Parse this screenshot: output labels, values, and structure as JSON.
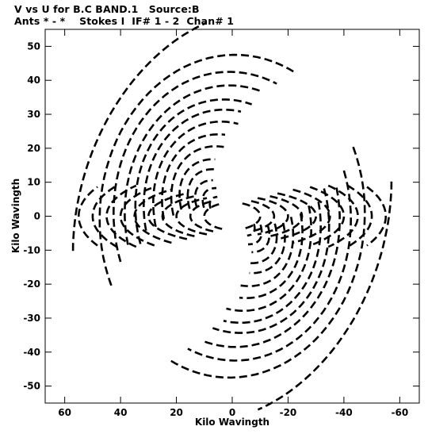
{
  "header": {
    "line1": "V vs U for B.C BAND.1   Source:B",
    "line2": "Ants * - *    Stokes I  IF# 1 - 2  Chan# 1"
  },
  "chart_data": {
    "type": "scatter",
    "title": "V vs U for B.C BAND.1   Source:B",
    "subtitle": "Ants * - *    Stokes I  IF# 1 - 2  Chan# 1",
    "xlabel": "Kilo Wavingth",
    "ylabel": "Kilo Wavingth",
    "xlim": [
      67,
      -67
    ],
    "ylim": [
      -55,
      55
    ],
    "x_ticks": [
      60,
      40,
      20,
      0,
      -20,
      -40,
      -60
    ],
    "y_ticks": [
      -50,
      -40,
      -30,
      -20,
      -10,
      0,
      10,
      20,
      30,
      40,
      50
    ],
    "x_tick_labels": [
      "60",
      "40",
      "20",
      "0",
      "-20",
      "-40",
      "-60"
    ],
    "y_tick_labels": [
      "-50",
      "-40",
      "-30",
      "-20",
      "-10",
      "0",
      "10",
      "20",
      "30",
      "40",
      "50"
    ],
    "grid": false,
    "series": [
      {
        "description_free": true,
        "color": "#000000",
        "tracks": [
          {
            "rx": 64,
            "ry": 53,
            "a0": 4.0,
            "a1": 5.4,
            "rot": 2.2
          },
          {
            "rx": 48,
            "ry": 47,
            "a0": 3.5,
            "a1": 6.0,
            "rot": 2.35
          },
          {
            "rx": 42,
            "ry": 43,
            "a0": 3.6,
            "a1": 5.9,
            "rot": 2.35
          },
          {
            "rx": 38,
            "ry": 39,
            "a0": 3.7,
            "a1": 5.8,
            "rot": 2.35
          },
          {
            "rx": 33,
            "ry": 36,
            "a0": 3.7,
            "a1": 5.8,
            "rot": 2.3
          },
          {
            "rx": 30,
            "ry": 33,
            "a0": 3.8,
            "a1": 5.7,
            "rot": 2.3
          },
          {
            "rx": 26,
            "ry": 30,
            "a0": 3.8,
            "a1": 5.7,
            "rot": 2.3
          },
          {
            "rx": 22,
            "ry": 27,
            "a0": 3.9,
            "a1": 5.6,
            "rot": 2.25
          },
          {
            "rx": 18,
            "ry": 24,
            "a0": 3.9,
            "a1": 5.6,
            "rot": 2.25
          },
          {
            "rx": 14,
            "ry": 21,
            "a0": 4.0,
            "a1": 5.5,
            "rot": 2.2
          },
          {
            "rx": 11,
            "ry": 18,
            "a0": 4.0,
            "a1": 5.5,
            "rot": 2.2
          },
          {
            "rx": 8,
            "ry": 15,
            "a0": 4.1,
            "a1": 5.4,
            "rot": 2.15
          },
          {
            "rx": 6,
            "ry": 12,
            "a0": 4.1,
            "a1": 5.4,
            "rot": 2.15
          },
          {
            "rx": 4,
            "ry": 9,
            "a0": 4.2,
            "a1": 5.3,
            "rot": 2.1
          },
          {
            "rx": 55,
            "ry": 18,
            "a0": -0.5,
            "a1": 0.5,
            "rot": 0.0
          },
          {
            "rx": 50,
            "ry": 16,
            "a0": -0.6,
            "a1": 0.6,
            "rot": 0.0
          },
          {
            "rx": 45,
            "ry": 14,
            "a0": -0.7,
            "a1": 0.7,
            "rot": 0.0
          },
          {
            "rx": 40,
            "ry": 12,
            "a0": -0.8,
            "a1": 0.8,
            "rot": 0.0
          },
          {
            "rx": 35,
            "ry": 10,
            "a0": -0.9,
            "a1": 0.9,
            "rot": 0.0
          },
          {
            "rx": 30,
            "ry": 8,
            "a0": -1.0,
            "a1": 1.0,
            "rot": 0.0
          },
          {
            "rx": 25,
            "ry": 7,
            "a0": -1.0,
            "a1": 1.0,
            "rot": 0.0
          },
          {
            "rx": 20,
            "ry": 6,
            "a0": -1.1,
            "a1": 1.1,
            "rot": 0.0
          },
          {
            "rx": 15,
            "ry": 5,
            "a0": -1.1,
            "a1": 1.1,
            "rot": 0.0
          },
          {
            "rx": 10,
            "ry": 4,
            "a0": -1.2,
            "a1": 1.2,
            "rot": 0.0
          }
        ]
      }
    ]
  }
}
